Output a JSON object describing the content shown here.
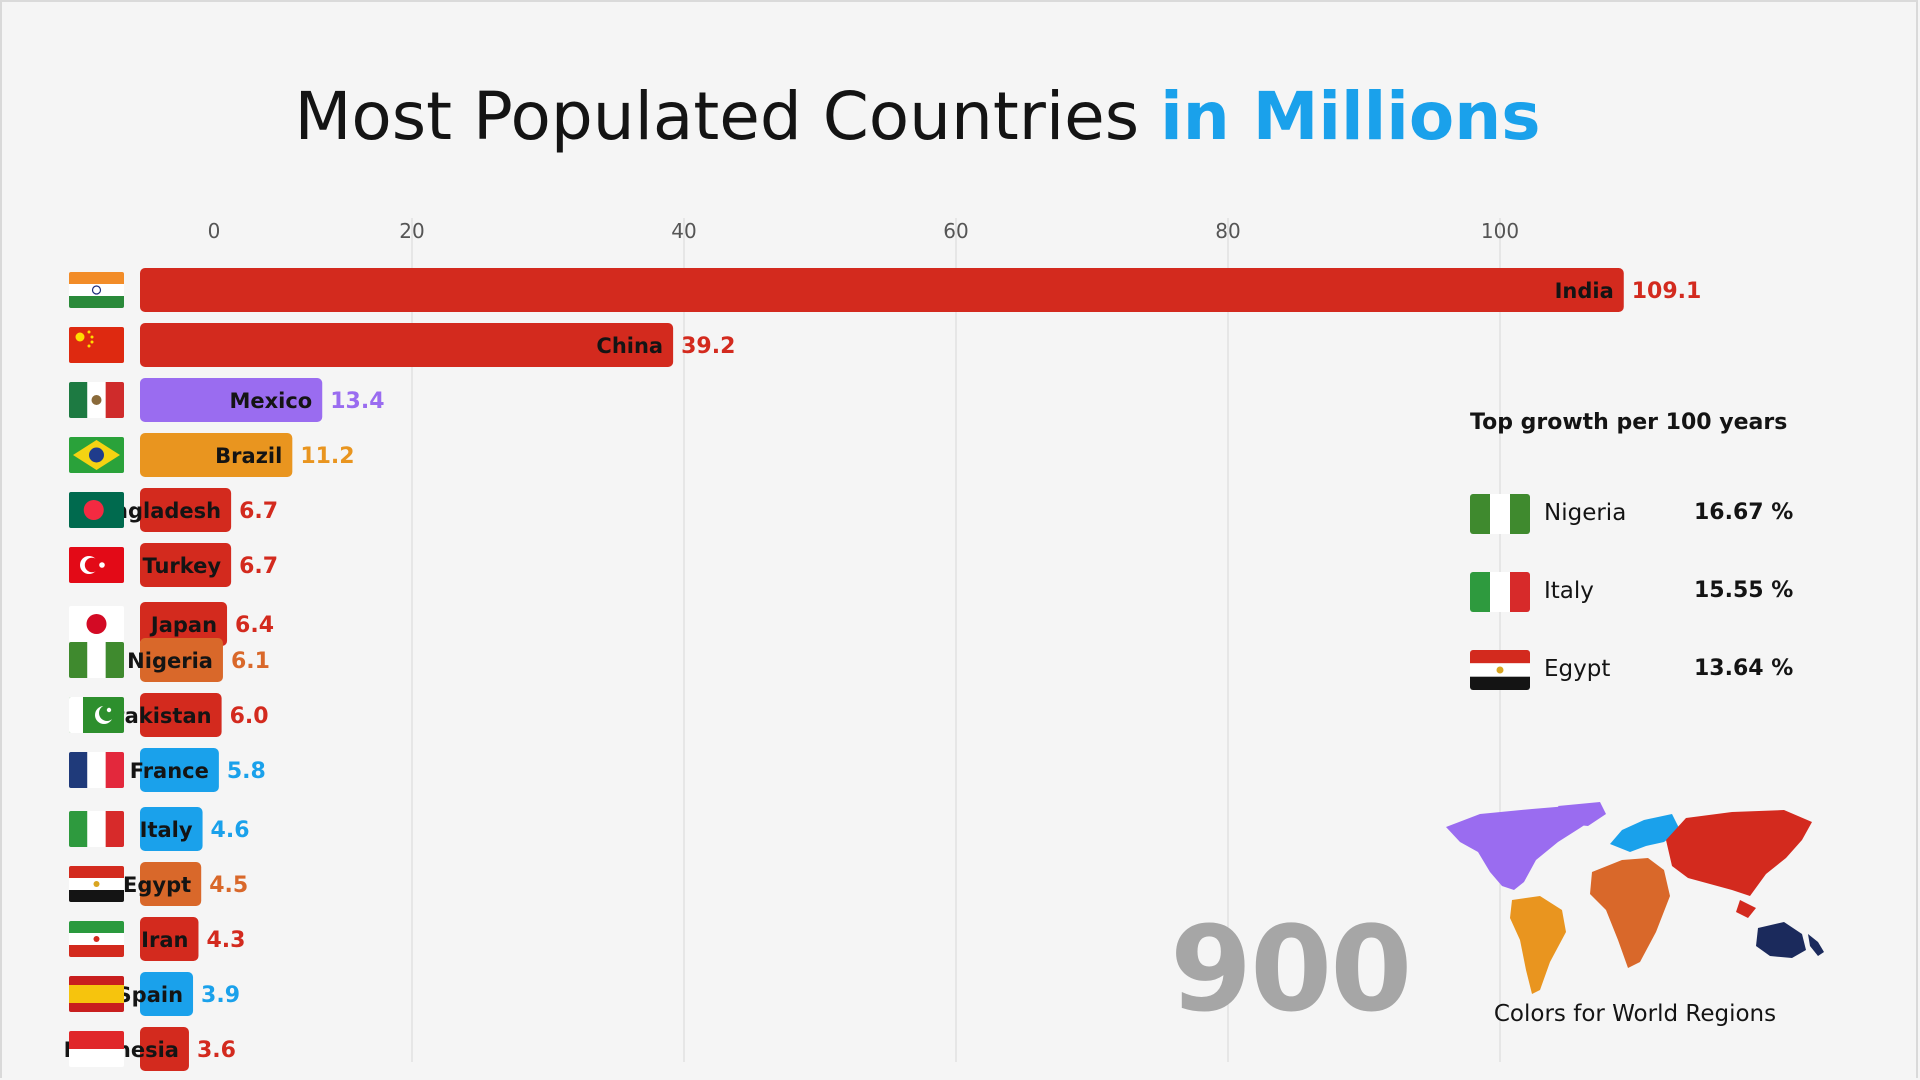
{
  "header": {
    "title_main": "Most Populated Countries",
    "title_accent": "in Millions"
  },
  "colors": {
    "accent": "#1aa1eb",
    "asia": "#d32a1e",
    "americas_north": "#9a6cf0",
    "americas_south": "#e9951f",
    "africa": "#d9682a",
    "europe": "#1aa1eb",
    "oceania": "#1b2a5c"
  },
  "chart_data": {
    "type": "bar",
    "orientation": "horizontal",
    "unit": "Millions",
    "xlim": [
      0,
      110
    ],
    "x_ticks": [
      "0",
      "20",
      "40",
      "60",
      "80",
      "100"
    ],
    "grid": true,
    "categories": [
      "India",
      "China",
      "Mexico",
      "Brazil",
      "Bangladesh",
      "Turkey",
      "Japan",
      "Nigeria",
      "Pakistan",
      "France",
      "Italy",
      "Egypt",
      "Iran",
      "Spain",
      "Indonesia"
    ],
    "values": [
      109.1,
      39.2,
      13.4,
      11.2,
      6.7,
      6.7,
      6.4,
      6.1,
      6.0,
      5.8,
      4.6,
      4.5,
      4.3,
      3.9,
      3.6
    ],
    "value_labels": [
      "109.1",
      "39.2",
      "13.4",
      "11.2",
      "6.7",
      "6.7",
      "6.4",
      "6.1",
      "6.0",
      "5.8",
      "4.6",
      "4.5",
      "4.3",
      "3.9",
      "3.6"
    ],
    "bar_colors": [
      "#d32a1e",
      "#d32a1e",
      "#9a6cf0",
      "#e9951f",
      "#d32a1e",
      "#d32a1e",
      "#d32a1e",
      "#d9682a",
      "#d32a1e",
      "#1aa1eb",
      "#1aa1eb",
      "#d9682a",
      "#d32a1e",
      "#1aa1eb",
      "#d32a1e"
    ],
    "flag_icons": [
      "india-flag-icon",
      "china-flag-icon",
      "mexico-flag-icon",
      "brazil-flag-icon",
      "bangladesh-flag-icon",
      "turkey-flag-icon",
      "japan-flag-icon",
      "nigeria-flag-icon",
      "pakistan-flag-icon",
      "france-flag-icon",
      "italy-flag-icon",
      "egypt-flag-icon",
      "iran-flag-icon",
      "spain-flag-icon",
      "indonesia-flag-icon"
    ]
  },
  "year": "900",
  "growth": {
    "title": "Top growth per 100 years",
    "items": [
      {
        "name": "Nigeria",
        "value": "16.67 %",
        "icon": "nigeria-flag-icon"
      },
      {
        "name": "Italy",
        "value": "15.55 %",
        "icon": "italy-flag-icon"
      },
      {
        "name": "Egypt",
        "value": "13.64 %",
        "icon": "egypt-flag-icon"
      }
    ]
  },
  "legend_map": {
    "caption": "Colors for World Regions",
    "icon": "world-map-icon"
  }
}
